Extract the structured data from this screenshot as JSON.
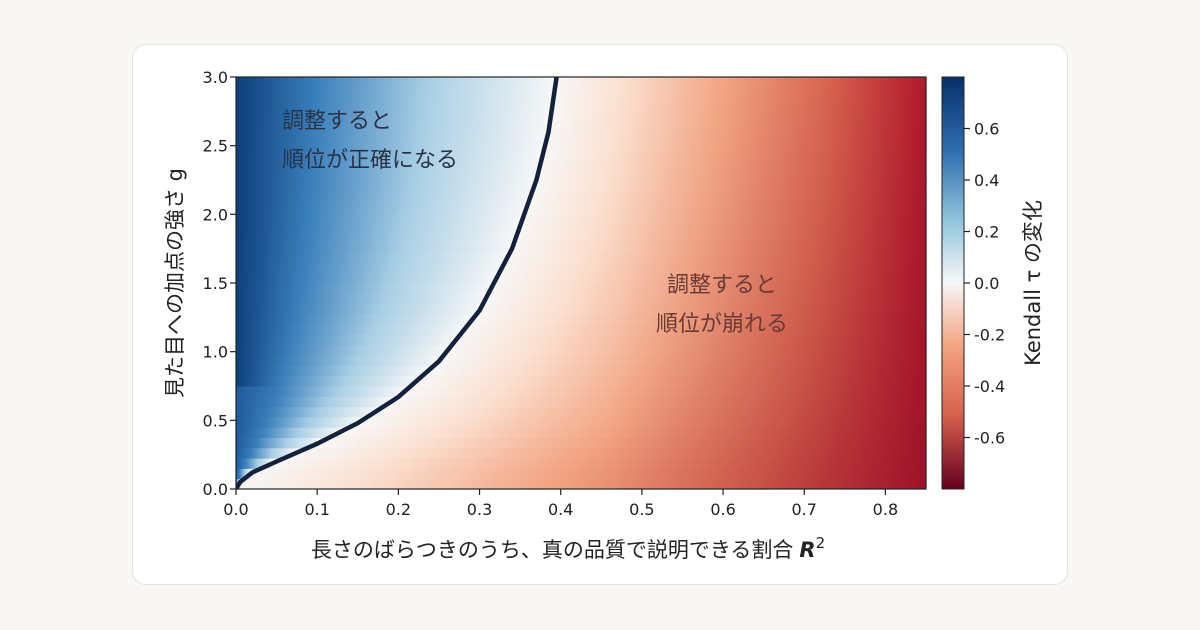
{
  "chart_data": {
    "type": "heatmap",
    "xlabel": "長さのばらつきのうち、真の品質で説明できる割合",
    "xlabel_symbol": "R",
    "xlabel_sup": "2",
    "ylabel": "見た目への加点の強さ g",
    "colorbar_label": "Kendall τ の変化",
    "xlim": [
      0.0,
      0.85
    ],
    "ylim": [
      0.0,
      3.0
    ],
    "x_ticks": [
      "0.0",
      "0.1",
      "0.2",
      "0.3",
      "0.4",
      "0.5",
      "0.6",
      "0.7",
      "0.8"
    ],
    "y_ticks": [
      "0.0",
      "0.5",
      "1.0",
      "1.5",
      "2.0",
      "2.5",
      "3.0"
    ],
    "colorbar_range": [
      -0.8,
      0.8
    ],
    "colorbar_ticks": [
      "0.6",
      "0.4",
      "0.2",
      "0.0",
      "-0.2",
      "-0.4",
      "-0.6"
    ],
    "colormap": "RdBu",
    "zero_contour": [
      {
        "x": 0.0,
        "y": 0.0
      },
      {
        "x": 0.005,
        "y": 0.05
      },
      {
        "x": 0.02,
        "y": 0.12
      },
      {
        "x": 0.05,
        "y": 0.2
      },
      {
        "x": 0.1,
        "y": 0.33
      },
      {
        "x": 0.15,
        "y": 0.48
      },
      {
        "x": 0.2,
        "y": 0.67
      },
      {
        "x": 0.25,
        "y": 0.93
      },
      {
        "x": 0.3,
        "y": 1.3
      },
      {
        "x": 0.34,
        "y": 1.75
      },
      {
        "x": 0.37,
        "y": 2.25
      },
      {
        "x": 0.385,
        "y": 2.6
      },
      {
        "x": 0.395,
        "y": 3.0
      }
    ],
    "annotations": [
      {
        "lines": [
          "調整すると",
          "順位が正確になる"
        ]
      },
      {
        "lines": [
          "調整すると",
          "順位が崩れる"
        ]
      }
    ],
    "colors": {
      "contour": "#14213d",
      "blue_strong": "#08306b",
      "blue_mid": "#4d94c4",
      "white": "#f7f7f7",
      "red_mid": "#f0a07e",
      "red_strong": "#67001f"
    }
  }
}
